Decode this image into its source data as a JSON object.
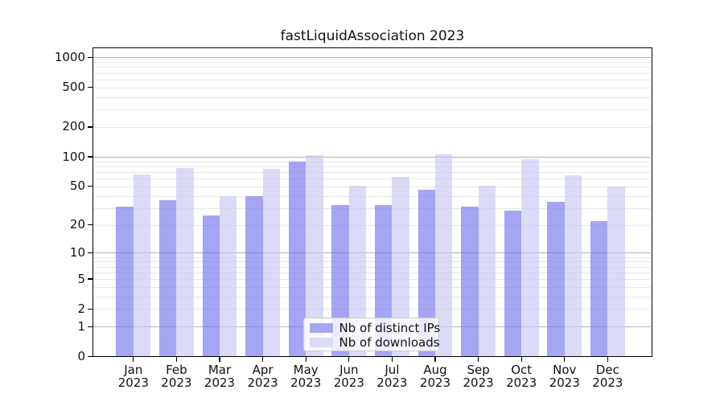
{
  "chart_data": {
    "type": "bar",
    "title": "fastLiquidAssociation 2023",
    "categories": [
      "Jan 2023",
      "Feb 2023",
      "Mar 2023",
      "Apr 2023",
      "May 2023",
      "Jun 2023",
      "Jul 2023",
      "Aug 2023",
      "Sep 2023",
      "Oct 2023",
      "Nov 2023",
      "Dec 2023"
    ],
    "series": [
      {
        "name": "Nb of distinct IPs",
        "values": [
          31,
          36,
          25,
          40,
          90,
          32,
          32,
          46,
          31,
          28,
          35,
          22
        ],
        "bar_color": "rgba(117,117,237,0.65)",
        "legend_color": "#a6a6f3"
      },
      {
        "name": "Nb of downloads",
        "values": [
          66,
          77,
          40,
          76,
          103,
          51,
          63,
          105,
          51,
          95,
          65,
          50
        ],
        "bar_color": "rgba(200,200,244,0.65)",
        "legend_color": "#dcdcf8"
      }
    ],
    "xlabel": "",
    "ylabel": "",
    "yscale": "symlog-like (position = log10(value+1))",
    "ylim": [
      0,
      1215
    ],
    "ytick_labels": [
      0,
      1,
      2,
      5,
      10,
      20,
      50,
      100,
      200,
      500,
      1000
    ],
    "major_gridlines": [
      1,
      10,
      100,
      1000
    ],
    "minor_gridlines": [
      2,
      3,
      4,
      5,
      6,
      7,
      8,
      9,
      20,
      30,
      40,
      50,
      60,
      70,
      80,
      90,
      200,
      300,
      400,
      500,
      600,
      700,
      800,
      900
    ],
    "grid": true,
    "legend_position": "lower center inside plot"
  },
  "colors": {
    "grid_major": "#b2b2b2",
    "grid_minor": "#e7e7e7",
    "spine": "#000000",
    "text": "#111111",
    "background": "#ffffff"
  }
}
